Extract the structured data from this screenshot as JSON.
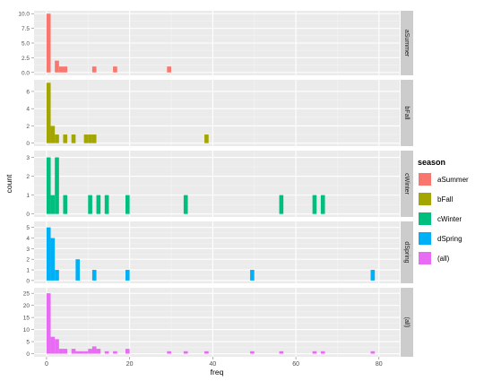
{
  "chart_data": {
    "type": "bar",
    "facet_layout": "rows",
    "xlabel": "freq",
    "ylabel": "count",
    "xlim": [
      -3,
      85
    ],
    "x_ticks": [
      0,
      20,
      40,
      60,
      80
    ],
    "bin_width": 1,
    "grid": true,
    "legend": {
      "title": "season",
      "position": "right"
    },
    "series": [
      {
        "name": "aSummer",
        "color": "#F8766D",
        "ylim": [
          0,
          10
        ],
        "y_ticks": [
          0.0,
          2.5,
          5.0,
          7.5,
          10.0
        ],
        "y_tick_labels": [
          "0.0",
          "2.5",
          "5.0",
          "7.5",
          "10.0"
        ],
        "points": [
          [
            0,
            10
          ],
          [
            2,
            2
          ],
          [
            3,
            1
          ],
          [
            4,
            1
          ],
          [
            11,
            1
          ],
          [
            16,
            1
          ],
          [
            29,
            1
          ]
        ]
      },
      {
        "name": "bFall",
        "color": "#A3A500",
        "ylim": [
          0,
          7
        ],
        "y_ticks": [
          0,
          2,
          4,
          6
        ],
        "y_tick_labels": [
          "0",
          "2",
          "4",
          "6"
        ],
        "points": [
          [
            0,
            7
          ],
          [
            1,
            2
          ],
          [
            2,
            1
          ],
          [
            4,
            1
          ],
          [
            6,
            1
          ],
          [
            9,
            1
          ],
          [
            10,
            1
          ],
          [
            11,
            1
          ],
          [
            38,
            1
          ]
        ]
      },
      {
        "name": "cWinter",
        "color": "#00BF7D",
        "ylim": [
          0,
          3.2
        ],
        "y_ticks": [
          0,
          1,
          2,
          3
        ],
        "y_tick_labels": [
          "0",
          "1",
          "2",
          "3"
        ],
        "points": [
          [
            0,
            3
          ],
          [
            1,
            1
          ],
          [
            2,
            3
          ],
          [
            4,
            1
          ],
          [
            10,
            1
          ],
          [
            12,
            1
          ],
          [
            14,
            1
          ],
          [
            19,
            1
          ],
          [
            33,
            1
          ],
          [
            56,
            1
          ],
          [
            64,
            1
          ],
          [
            66,
            1
          ]
        ]
      },
      {
        "name": "dSpring",
        "color": "#00B0F6",
        "ylim": [
          0,
          5.3
        ],
        "y_ticks": [
          0,
          1,
          2,
          3,
          4,
          5
        ],
        "y_tick_labels": [
          "0",
          "1",
          "2",
          "3",
          "4",
          "5"
        ],
        "points": [
          [
            0,
            5
          ],
          [
            1,
            4
          ],
          [
            2,
            1
          ],
          [
            7,
            2
          ],
          [
            11,
            1
          ],
          [
            19,
            1
          ],
          [
            49,
            1
          ],
          [
            78,
            1
          ]
        ]
      },
      {
        "name": "(all)",
        "color": "#E76BF3",
        "ylim": [
          0,
          26
        ],
        "y_ticks": [
          0,
          5,
          10,
          15,
          20,
          25
        ],
        "y_tick_labels": [
          "0",
          "5",
          "10",
          "15",
          "20",
          "25"
        ],
        "points": [
          [
            0,
            25
          ],
          [
            1,
            7
          ],
          [
            2,
            6
          ],
          [
            3,
            2
          ],
          [
            4,
            2
          ],
          [
            6,
            2
          ],
          [
            7,
            1
          ],
          [
            8,
            1
          ],
          [
            9,
            1
          ],
          [
            10,
            2
          ],
          [
            11,
            3
          ],
          [
            12,
            2
          ],
          [
            14,
            1
          ],
          [
            16,
            1
          ],
          [
            19,
            2
          ],
          [
            29,
            1
          ],
          [
            33,
            1
          ],
          [
            38,
            1
          ],
          [
            49,
            1
          ],
          [
            56,
            1
          ],
          [
            64,
            1
          ],
          [
            66,
            1
          ],
          [
            78,
            1
          ]
        ]
      }
    ]
  }
}
